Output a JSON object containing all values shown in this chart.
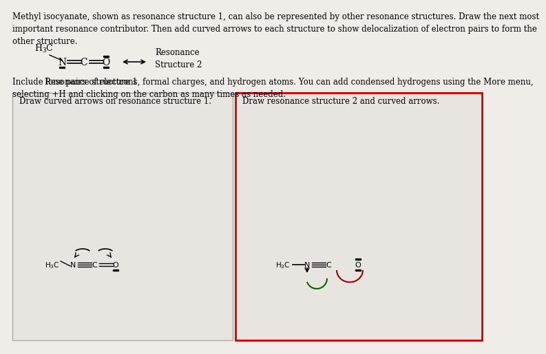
{
  "bg_color": "#f0ede8",
  "panel_bg": "#e8e5e0",
  "panel_border_left": "#cccccc",
  "panel_border_right": "#cc0000",
  "title_text": "Methyl isocyanate, shown as resonance structure 1, can also be represented by other resonance structures. Draw the next most\nimportant resonance contributor. Then add curved arrows to each structure to show delocalization of electron pairs to form the\nother structure.",
  "instruction_text": "Include lone pairs of electrons, formal charges, and hydrogen atoms. You can add condensed hydrogens using the More menu,\nselecting +H and clicking on the carbon as many times as needed.",
  "label_left": "Draw curved arrows on resonance structure 1.",
  "label_right": "Draw resonance structure 2 and curved arrows.",
  "resonance_label": "Resonance structure 1",
  "resonance_label2": "Resonance\nStructure 2",
  "font_size_title": 8.5,
  "font_size_label": 8.5,
  "font_size_panel": 8.5
}
